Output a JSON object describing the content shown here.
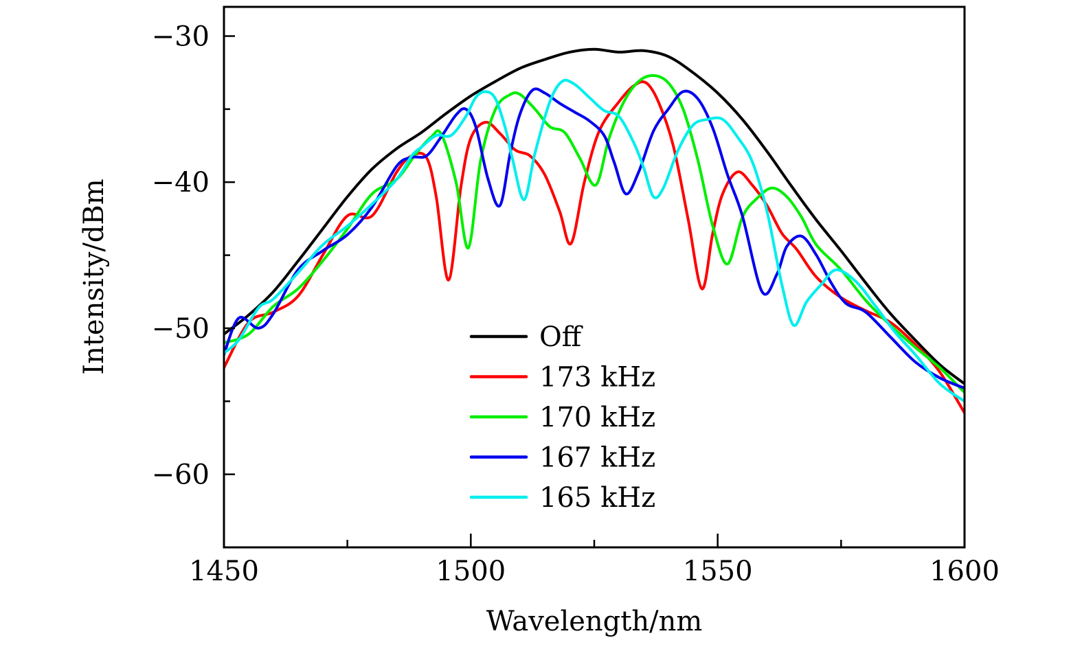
{
  "chart_data": {
    "type": "line",
    "title": "",
    "xlabel": "Wavelength/nm",
    "ylabel": "Intensity/dBm",
    "xlim": [
      1450,
      1600
    ],
    "ylim": [
      -65,
      -28
    ],
    "xticks": [
      1450,
      1500,
      1550,
      1600
    ],
    "xtick_labels": [
      "1450",
      "1500",
      "1550",
      "1600"
    ],
    "xminor_ticks": [
      1475,
      1525,
      1575
    ],
    "yticks": [
      -30,
      -40,
      -50,
      -60
    ],
    "ytick_labels": [
      "−30",
      "−40",
      "−50",
      "−60"
    ],
    "yminor_ticks": [
      -35,
      -45,
      -55
    ],
    "grid": false,
    "legend_position": "center-bottom",
    "series": [
      {
        "name": "Off",
        "color": "#000000",
        "x": [
          1450,
          1455,
          1460,
          1465,
          1470,
          1475,
          1480,
          1485,
          1490,
          1495,
          1500,
          1505,
          1510,
          1515,
          1520,
          1525,
          1530,
          1535,
          1540,
          1545,
          1550,
          1555,
          1560,
          1565,
          1570,
          1575,
          1580,
          1585,
          1590,
          1595,
          1600
        ],
        "y": [
          -50.4,
          -49.1,
          -47.5,
          -45.4,
          -43.2,
          -41.0,
          -39.1,
          -37.7,
          -36.6,
          -35.3,
          -34.1,
          -33.1,
          -32.2,
          -31.6,
          -31.1,
          -30.9,
          -31.1,
          -31.0,
          -31.4,
          -32.5,
          -33.9,
          -35.7,
          -37.9,
          -40.3,
          -42.6,
          -44.7,
          -46.9,
          -49.0,
          -50.8,
          -52.5,
          -53.8
        ]
      },
      {
        "name": "173 kHz",
        "color": "#ff0000",
        "x": [
          1450,
          1455,
          1460,
          1465,
          1470,
          1475,
          1480,
          1485,
          1488,
          1491,
          1493,
          1495.5,
          1498,
          1500,
          1503,
          1506,
          1509,
          1512,
          1515,
          1518,
          1520.3,
          1523,
          1526,
          1530,
          1533,
          1535.5,
          1538,
          1541,
          1544,
          1546.8,
          1549,
          1551,
          1554,
          1557,
          1560,
          1563,
          1566,
          1570,
          1575,
          1580,
          1585,
          1590,
          1595,
          1600
        ],
        "y": [
          -52.7,
          -49.6,
          -48.9,
          -47.8,
          -45.0,
          -42.3,
          -42.3,
          -39.3,
          -38.2,
          -38.3,
          -41.0,
          -46.7,
          -40.3,
          -37.0,
          -35.9,
          -36.7,
          -37.8,
          -38.2,
          -39.5,
          -42.0,
          -44.2,
          -40.0,
          -36.5,
          -34.5,
          -33.4,
          -33.2,
          -34.5,
          -37.5,
          -42.5,
          -47.3,
          -43.5,
          -40.8,
          -39.3,
          -40.2,
          -41.6,
          -43.5,
          -44.6,
          -46.5,
          -47.9,
          -48.8,
          -49.6,
          -51.1,
          -53.0,
          -55.8
        ]
      },
      {
        "name": "170 kHz",
        "color": "#00ee00",
        "x": [
          1450,
          1455,
          1460,
          1465,
          1470,
          1475,
          1480,
          1485,
          1489,
          1492,
          1494,
          1497,
          1499.5,
          1502,
          1505,
          1508,
          1510,
          1513,
          1516,
          1519,
          1522,
          1525.3,
          1528,
          1531,
          1534,
          1537,
          1540,
          1543,
          1546,
          1549,
          1552,
          1555,
          1558,
          1561,
          1564,
          1567,
          1570,
          1575,
          1580,
          1585,
          1590,
          1595,
          1600
        ],
        "y": [
          -51.0,
          -50.4,
          -48.5,
          -47.3,
          -45.4,
          -43.2,
          -40.8,
          -39.8,
          -38.0,
          -36.9,
          -36.7,
          -40.0,
          -44.5,
          -38.5,
          -35.0,
          -34.0,
          -34.0,
          -35.0,
          -36.2,
          -36.6,
          -38.3,
          -40.2,
          -37.0,
          -34.5,
          -33.1,
          -32.7,
          -33.2,
          -35.0,
          -38.5,
          -43.0,
          -45.6,
          -42.4,
          -41.1,
          -40.4,
          -41.0,
          -42.4,
          -44.3,
          -46.0,
          -48.1,
          -49.8,
          -51.3,
          -52.7,
          -54.4
        ]
      },
      {
        "name": "167 kHz",
        "color": "#0000ee",
        "x": [
          1450,
          1453,
          1457,
          1460,
          1465,
          1470,
          1475,
          1480,
          1485,
          1488,
          1491,
          1494,
          1497,
          1499,
          1501,
          1503.5,
          1505.9,
          1508,
          1510,
          1512.5,
          1515,
          1518,
          1521,
          1524,
          1527,
          1529,
          1531.4,
          1534,
          1537,
          1540,
          1543,
          1546,
          1549,
          1552,
          1555,
          1559,
          1562,
          1564,
          1567,
          1570,
          1573,
          1576,
          1580,
          1585,
          1590,
          1595,
          1600
        ],
        "y": [
          -51.8,
          -49.3,
          -50.0,
          -49.0,
          -46.0,
          -44.7,
          -43.6,
          -41.7,
          -38.9,
          -38.3,
          -38.2,
          -36.9,
          -35.4,
          -35.0,
          -36.2,
          -39.8,
          -41.6,
          -38.0,
          -35.3,
          -33.7,
          -33.9,
          -34.6,
          -35.2,
          -35.8,
          -36.8,
          -38.6,
          -40.8,
          -39.3,
          -36.5,
          -35.0,
          -33.8,
          -34.3,
          -36.3,
          -39.5,
          -42.3,
          -47.5,
          -46.3,
          -44.4,
          -43.7,
          -45.0,
          -46.9,
          -48.3,
          -48.9,
          -50.6,
          -52.3,
          -53.4,
          -54.1
        ]
      },
      {
        "name": "165 kHz",
        "color": "#00eeee",
        "x": [
          1450,
          1453,
          1457,
          1460,
          1465,
          1470,
          1475,
          1480,
          1485,
          1488,
          1490,
          1493,
          1496,
          1499,
          1501,
          1503,
          1505,
          1507,
          1508.5,
          1510.8,
          1513,
          1516,
          1518.5,
          1521,
          1524,
          1527,
          1530,
          1533,
          1535,
          1537,
          1539,
          1542,
          1545,
          1548,
          1551,
          1554,
          1557,
          1560,
          1563,
          1565.4,
          1568,
          1571,
          1574,
          1578,
          1582,
          1586,
          1590,
          1595,
          1600
        ],
        "y": [
          -51.7,
          -50.8,
          -48.6,
          -48.0,
          -46.2,
          -44.3,
          -43.0,
          -41.5,
          -39.8,
          -38.2,
          -37.6,
          -36.8,
          -36.8,
          -35.5,
          -34.2,
          -33.8,
          -34.3,
          -36.3,
          -38.5,
          -41.2,
          -38.0,
          -34.5,
          -33.1,
          -33.3,
          -34.2,
          -35.1,
          -35.5,
          -37.3,
          -39.0,
          -41.0,
          -40.4,
          -37.8,
          -36.1,
          -35.7,
          -35.7,
          -36.9,
          -38.6,
          -42.0,
          -47.0,
          -49.8,
          -48.2,
          -47.0,
          -46.0,
          -46.8,
          -48.5,
          -50.3,
          -51.8,
          -53.8,
          -55.0
        ]
      }
    ]
  }
}
